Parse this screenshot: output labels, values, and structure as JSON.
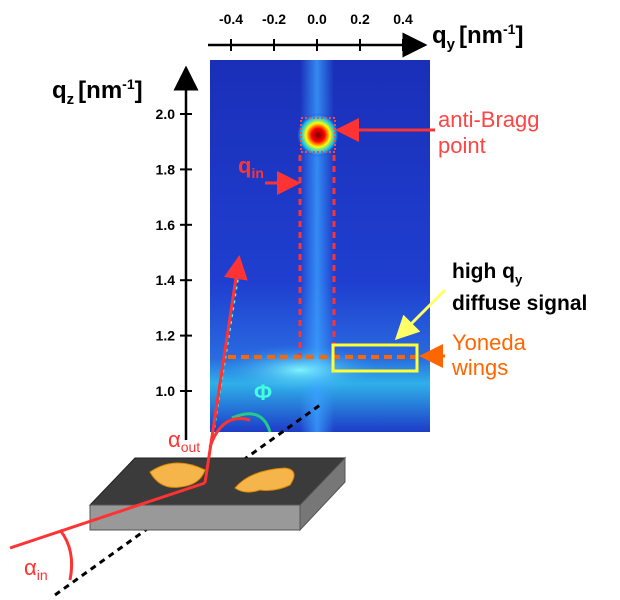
{
  "axes": {
    "qy": {
      "ticks": [
        "-0.4",
        "-0.2",
        "0.0",
        "0.2",
        "0.4"
      ],
      "label": {
        "symbol": "q",
        "sub": "y",
        "unit": "[nm",
        "sup": "-1",
        "close": "]"
      }
    },
    "qz": {
      "ticks": [
        "2.0",
        "1.8",
        "1.6",
        "1.4",
        "1.2",
        "1.0"
      ],
      "label": {
        "symbol": "q",
        "sub": "z",
        "unit": "[nm",
        "sup": "-1",
        "close": "]"
      }
    }
  },
  "annotations": {
    "anti_bragg": [
      "anti-Bragg",
      "point"
    ],
    "q_in": {
      "symbol": "q",
      "sub": "in"
    },
    "diffuse": {
      "line1": {
        "text": "high q",
        "sub": "y"
      },
      "line2": "diffuse signal"
    },
    "yoneda": [
      "Yoneda",
      "wings"
    ],
    "phi": "Φ",
    "alpha_out": {
      "symbol": "α",
      "sub": "out"
    },
    "alpha_in": {
      "symbol": "α",
      "sub": "in"
    }
  }
}
